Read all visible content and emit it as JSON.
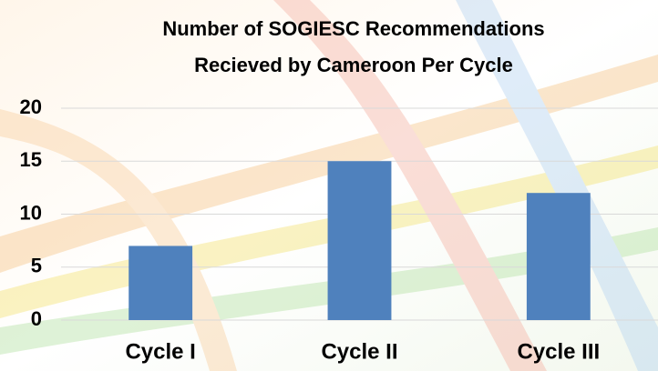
{
  "chart_data": {
    "type": "bar",
    "title": [
      "Number of SOGIESC Recommendations",
      "Recieved by Cameroon Per Cycle"
    ],
    "categories": [
      "Cycle I",
      "Cycle II",
      "Cycle III"
    ],
    "values": [
      7,
      15,
      12
    ],
    "color": "#4f81bd",
    "ylim": [
      0,
      20
    ],
    "yticks": [
      0,
      5,
      10,
      15,
      20
    ],
    "grid": true
  }
}
